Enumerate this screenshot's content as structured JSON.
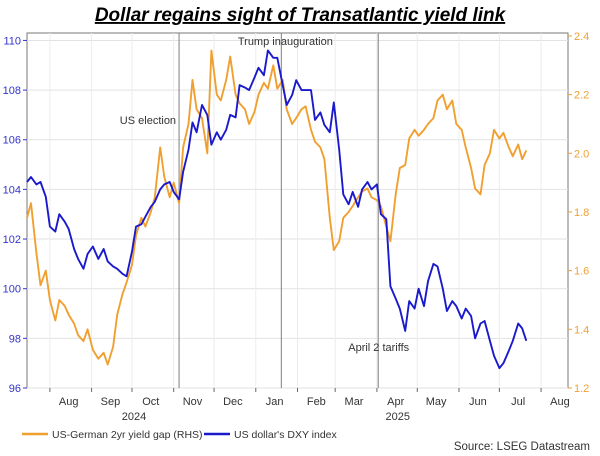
{
  "chart_data": {
    "type": "line",
    "title": "Dollar regains sight of Transatlantic yield link",
    "source": "Source: LSEG Datastream",
    "x_axis": {
      "months": [
        "Aug",
        "Sep",
        "Oct",
        "Nov",
        "Dec",
        "Jan",
        "Feb",
        "Mar",
        "Apr",
        "May",
        "Jun",
        "Jul",
        "Aug"
      ],
      "years": [
        "2024",
        "2025"
      ]
    },
    "y_left": {
      "ticks": [
        "96",
        "98",
        "100",
        "102",
        "104",
        "106",
        "108",
        "110"
      ],
      "ylim": [
        96,
        110.3
      ]
    },
    "y_right": {
      "ticks": [
        "1.2",
        "1.4",
        "1.6",
        "1.8",
        "2.0",
        "2.2",
        "2.4"
      ],
      "ylim": [
        1.2,
        2.41
      ]
    },
    "annotations": [
      {
        "text": "US election",
        "date": "2024-11-05"
      },
      {
        "text": "Trump inauguration",
        "date": "2025-01-20"
      },
      {
        "text": "April 2 tariffs",
        "date": "2025-04-02"
      }
    ],
    "series": [
      {
        "name": "US-German 2yr yield gap (RHS)",
        "axis": "right",
        "color": "#f0a030",
        "points": [
          [
            "2024-07-15",
            1.78
          ],
          [
            "2024-07-18",
            1.83
          ],
          [
            "2024-07-22",
            1.66
          ],
          [
            "2024-07-25",
            1.55
          ],
          [
            "2024-07-29",
            1.6
          ],
          [
            "2024-08-01",
            1.5
          ],
          [
            "2024-08-05",
            1.43
          ],
          [
            "2024-08-08",
            1.5
          ],
          [
            "2024-08-12",
            1.48
          ],
          [
            "2024-08-15",
            1.45
          ],
          [
            "2024-08-19",
            1.42
          ],
          [
            "2024-08-22",
            1.38
          ],
          [
            "2024-08-26",
            1.36
          ],
          [
            "2024-08-29",
            1.4
          ],
          [
            "2024-09-02",
            1.33
          ],
          [
            "2024-09-06",
            1.3
          ],
          [
            "2024-09-10",
            1.32
          ],
          [
            "2024-09-13",
            1.28
          ],
          [
            "2024-09-17",
            1.34
          ],
          [
            "2024-09-20",
            1.45
          ],
          [
            "2024-09-24",
            1.52
          ],
          [
            "2024-09-27",
            1.56
          ],
          [
            "2024-10-01",
            1.62
          ],
          [
            "2024-10-04",
            1.72
          ],
          [
            "2024-10-08",
            1.78
          ],
          [
            "2024-10-11",
            1.75
          ],
          [
            "2024-10-15",
            1.8
          ],
          [
            "2024-10-18",
            1.85
          ],
          [
            "2024-10-22",
            2.02
          ],
          [
            "2024-10-25",
            1.92
          ],
          [
            "2024-10-29",
            1.85
          ],
          [
            "2024-11-01",
            1.9
          ],
          [
            "2024-11-05",
            1.83
          ],
          [
            "2024-11-08",
            2.02
          ],
          [
            "2024-11-12",
            2.1
          ],
          [
            "2024-11-15",
            2.25
          ],
          [
            "2024-11-18",
            2.15
          ],
          [
            "2024-11-22",
            2.12
          ],
          [
            "2024-11-26",
            2.0
          ],
          [
            "2024-11-29",
            2.35
          ],
          [
            "2024-12-03",
            2.2
          ],
          [
            "2024-12-06",
            2.18
          ],
          [
            "2024-12-10",
            2.25
          ],
          [
            "2024-12-13",
            2.33
          ],
          [
            "2024-12-17",
            2.2
          ],
          [
            "2024-12-20",
            2.17
          ],
          [
            "2024-12-24",
            2.15
          ],
          [
            "2024-12-27",
            2.1
          ],
          [
            "2024-12-31",
            2.14
          ],
          [
            "2025-01-03",
            2.2
          ],
          [
            "2025-01-07",
            2.24
          ],
          [
            "2025-01-10",
            2.22
          ],
          [
            "2025-01-14",
            2.3
          ],
          [
            "2025-01-17",
            2.22
          ],
          [
            "2025-01-21",
            2.25
          ],
          [
            "2025-01-24",
            2.15
          ],
          [
            "2025-01-28",
            2.1
          ],
          [
            "2025-01-31",
            2.12
          ],
          [
            "2025-02-04",
            2.15
          ],
          [
            "2025-02-07",
            2.16
          ],
          [
            "2025-02-11",
            2.08
          ],
          [
            "2025-02-14",
            2.04
          ],
          [
            "2025-02-18",
            2.02
          ],
          [
            "2025-02-21",
            1.98
          ],
          [
            "2025-02-25",
            1.78
          ],
          [
            "2025-02-28",
            1.67
          ],
          [
            "2025-03-04",
            1.7
          ],
          [
            "2025-03-07",
            1.78
          ],
          [
            "2025-03-11",
            1.8
          ],
          [
            "2025-03-14",
            1.82
          ],
          [
            "2025-03-18",
            1.85
          ],
          [
            "2025-03-21",
            1.87
          ],
          [
            "2025-03-25",
            1.88
          ],
          [
            "2025-03-28",
            1.85
          ],
          [
            "2025-04-01",
            1.84
          ],
          [
            "2025-04-04",
            1.82
          ],
          [
            "2025-04-08",
            1.75
          ],
          [
            "2025-04-11",
            1.7
          ],
          [
            "2025-04-15",
            1.86
          ],
          [
            "2025-04-18",
            1.95
          ],
          [
            "2025-04-22",
            1.96
          ],
          [
            "2025-04-25",
            2.05
          ],
          [
            "2025-04-29",
            2.08
          ],
          [
            "2025-05-02",
            2.06
          ],
          [
            "2025-05-06",
            2.08
          ],
          [
            "2025-05-09",
            2.1
          ],
          [
            "2025-05-13",
            2.12
          ],
          [
            "2025-05-16",
            2.18
          ],
          [
            "2025-05-20",
            2.2
          ],
          [
            "2025-05-23",
            2.15
          ],
          [
            "2025-05-27",
            2.18
          ],
          [
            "2025-05-30",
            2.1
          ],
          [
            "2025-06-03",
            2.08
          ],
          [
            "2025-06-06",
            2.02
          ],
          [
            "2025-06-10",
            1.95
          ],
          [
            "2025-06-13",
            1.88
          ],
          [
            "2025-06-17",
            1.86
          ],
          [
            "2025-06-20",
            1.96
          ],
          [
            "2025-06-24",
            2.0
          ],
          [
            "2025-06-27",
            2.08
          ],
          [
            "2025-07-01",
            2.05
          ],
          [
            "2025-07-04",
            2.07
          ],
          [
            "2025-07-08",
            2.02
          ],
          [
            "2025-07-11",
            1.99
          ],
          [
            "2025-07-15",
            2.03
          ],
          [
            "2025-07-18",
            1.98
          ],
          [
            "2025-07-21",
            2.01
          ]
        ]
      },
      {
        "name": "US dollar's DXY index",
        "axis": "left",
        "color": "#1a1acc",
        "points": [
          [
            "2024-07-15",
            104.3
          ],
          [
            "2024-07-18",
            104.5
          ],
          [
            "2024-07-22",
            104.2
          ],
          [
            "2024-07-25",
            104.3
          ],
          [
            "2024-07-29",
            103.7
          ],
          [
            "2024-08-01",
            102.5
          ],
          [
            "2024-08-05",
            102.3
          ],
          [
            "2024-08-08",
            103.0
          ],
          [
            "2024-08-12",
            102.7
          ],
          [
            "2024-08-15",
            102.4
          ],
          [
            "2024-08-19",
            101.6
          ],
          [
            "2024-08-22",
            101.2
          ],
          [
            "2024-08-26",
            100.8
          ],
          [
            "2024-08-29",
            101.4
          ],
          [
            "2024-09-02",
            101.7
          ],
          [
            "2024-09-06",
            101.2
          ],
          [
            "2024-09-10",
            101.6
          ],
          [
            "2024-09-13",
            101.1
          ],
          [
            "2024-09-17",
            100.9
          ],
          [
            "2024-09-20",
            100.8
          ],
          [
            "2024-09-24",
            100.6
          ],
          [
            "2024-09-27",
            100.5
          ],
          [
            "2024-10-01",
            101.5
          ],
          [
            "2024-10-04",
            102.5
          ],
          [
            "2024-10-08",
            102.6
          ],
          [
            "2024-10-11",
            102.9
          ],
          [
            "2024-10-15",
            103.3
          ],
          [
            "2024-10-18",
            103.5
          ],
          [
            "2024-10-22",
            104.0
          ],
          [
            "2024-10-25",
            104.2
          ],
          [
            "2024-10-29",
            104.3
          ],
          [
            "2024-11-01",
            103.9
          ],
          [
            "2024-11-05",
            103.6
          ],
          [
            "2024-11-08",
            104.7
          ],
          [
            "2024-11-12",
            105.6
          ],
          [
            "2024-11-15",
            106.7
          ],
          [
            "2024-11-18",
            106.3
          ],
          [
            "2024-11-22",
            107.4
          ],
          [
            "2024-11-26",
            107.0
          ],
          [
            "2024-11-29",
            105.8
          ],
          [
            "2024-12-03",
            106.3
          ],
          [
            "2024-12-06",
            106.0
          ],
          [
            "2024-12-10",
            106.4
          ],
          [
            "2024-12-13",
            107.0
          ],
          [
            "2024-12-17",
            106.9
          ],
          [
            "2024-12-20",
            108.2
          ],
          [
            "2024-12-24",
            108.1
          ],
          [
            "2024-12-27",
            108.0
          ],
          [
            "2024-12-31",
            108.5
          ],
          [
            "2025-01-03",
            108.9
          ],
          [
            "2025-01-07",
            108.6
          ],
          [
            "2025-01-10",
            109.6
          ],
          [
            "2025-01-14",
            109.3
          ],
          [
            "2025-01-17",
            109.3
          ],
          [
            "2025-01-21",
            108.2
          ],
          [
            "2025-01-24",
            107.4
          ],
          [
            "2025-01-28",
            107.8
          ],
          [
            "2025-01-31",
            108.4
          ],
          [
            "2025-02-04",
            108.0
          ],
          [
            "2025-02-07",
            108.0
          ],
          [
            "2025-02-11",
            108.0
          ],
          [
            "2025-02-14",
            106.8
          ],
          [
            "2025-02-18",
            107.1
          ],
          [
            "2025-02-21",
            106.6
          ],
          [
            "2025-02-25",
            106.3
          ],
          [
            "2025-02-28",
            107.5
          ],
          [
            "2025-03-04",
            105.6
          ],
          [
            "2025-03-07",
            103.8
          ],
          [
            "2025-03-11",
            103.4
          ],
          [
            "2025-03-14",
            103.9
          ],
          [
            "2025-03-18",
            103.3
          ],
          [
            "2025-03-21",
            104.0
          ],
          [
            "2025-03-25",
            104.3
          ],
          [
            "2025-03-28",
            104.0
          ],
          [
            "2025-04-01",
            104.2
          ],
          [
            "2025-04-04",
            103.0
          ],
          [
            "2025-04-08",
            102.8
          ],
          [
            "2025-04-11",
            100.1
          ],
          [
            "2025-04-15",
            99.6
          ],
          [
            "2025-04-18",
            99.2
          ],
          [
            "2025-04-22",
            98.3
          ],
          [
            "2025-04-25",
            99.5
          ],
          [
            "2025-04-29",
            99.2
          ],
          [
            "2025-05-02",
            100.0
          ],
          [
            "2025-05-06",
            99.3
          ],
          [
            "2025-05-09",
            100.3
          ],
          [
            "2025-05-13",
            101.0
          ],
          [
            "2025-05-16",
            100.9
          ],
          [
            "2025-05-20",
            100.0
          ],
          [
            "2025-05-23",
            99.1
          ],
          [
            "2025-05-27",
            99.5
          ],
          [
            "2025-05-30",
            99.3
          ],
          [
            "2025-06-03",
            98.8
          ],
          [
            "2025-06-06",
            99.2
          ],
          [
            "2025-06-10",
            98.9
          ],
          [
            "2025-06-13",
            98.0
          ],
          [
            "2025-06-17",
            98.6
          ],
          [
            "2025-06-20",
            98.7
          ],
          [
            "2025-06-24",
            97.9
          ],
          [
            "2025-06-27",
            97.3
          ],
          [
            "2025-07-01",
            96.8
          ],
          [
            "2025-07-04",
            97.0
          ],
          [
            "2025-07-08",
            97.5
          ],
          [
            "2025-07-11",
            97.9
          ],
          [
            "2025-07-15",
            98.6
          ],
          [
            "2025-07-18",
            98.4
          ],
          [
            "2025-07-21",
            97.9
          ]
        ]
      }
    ]
  }
}
